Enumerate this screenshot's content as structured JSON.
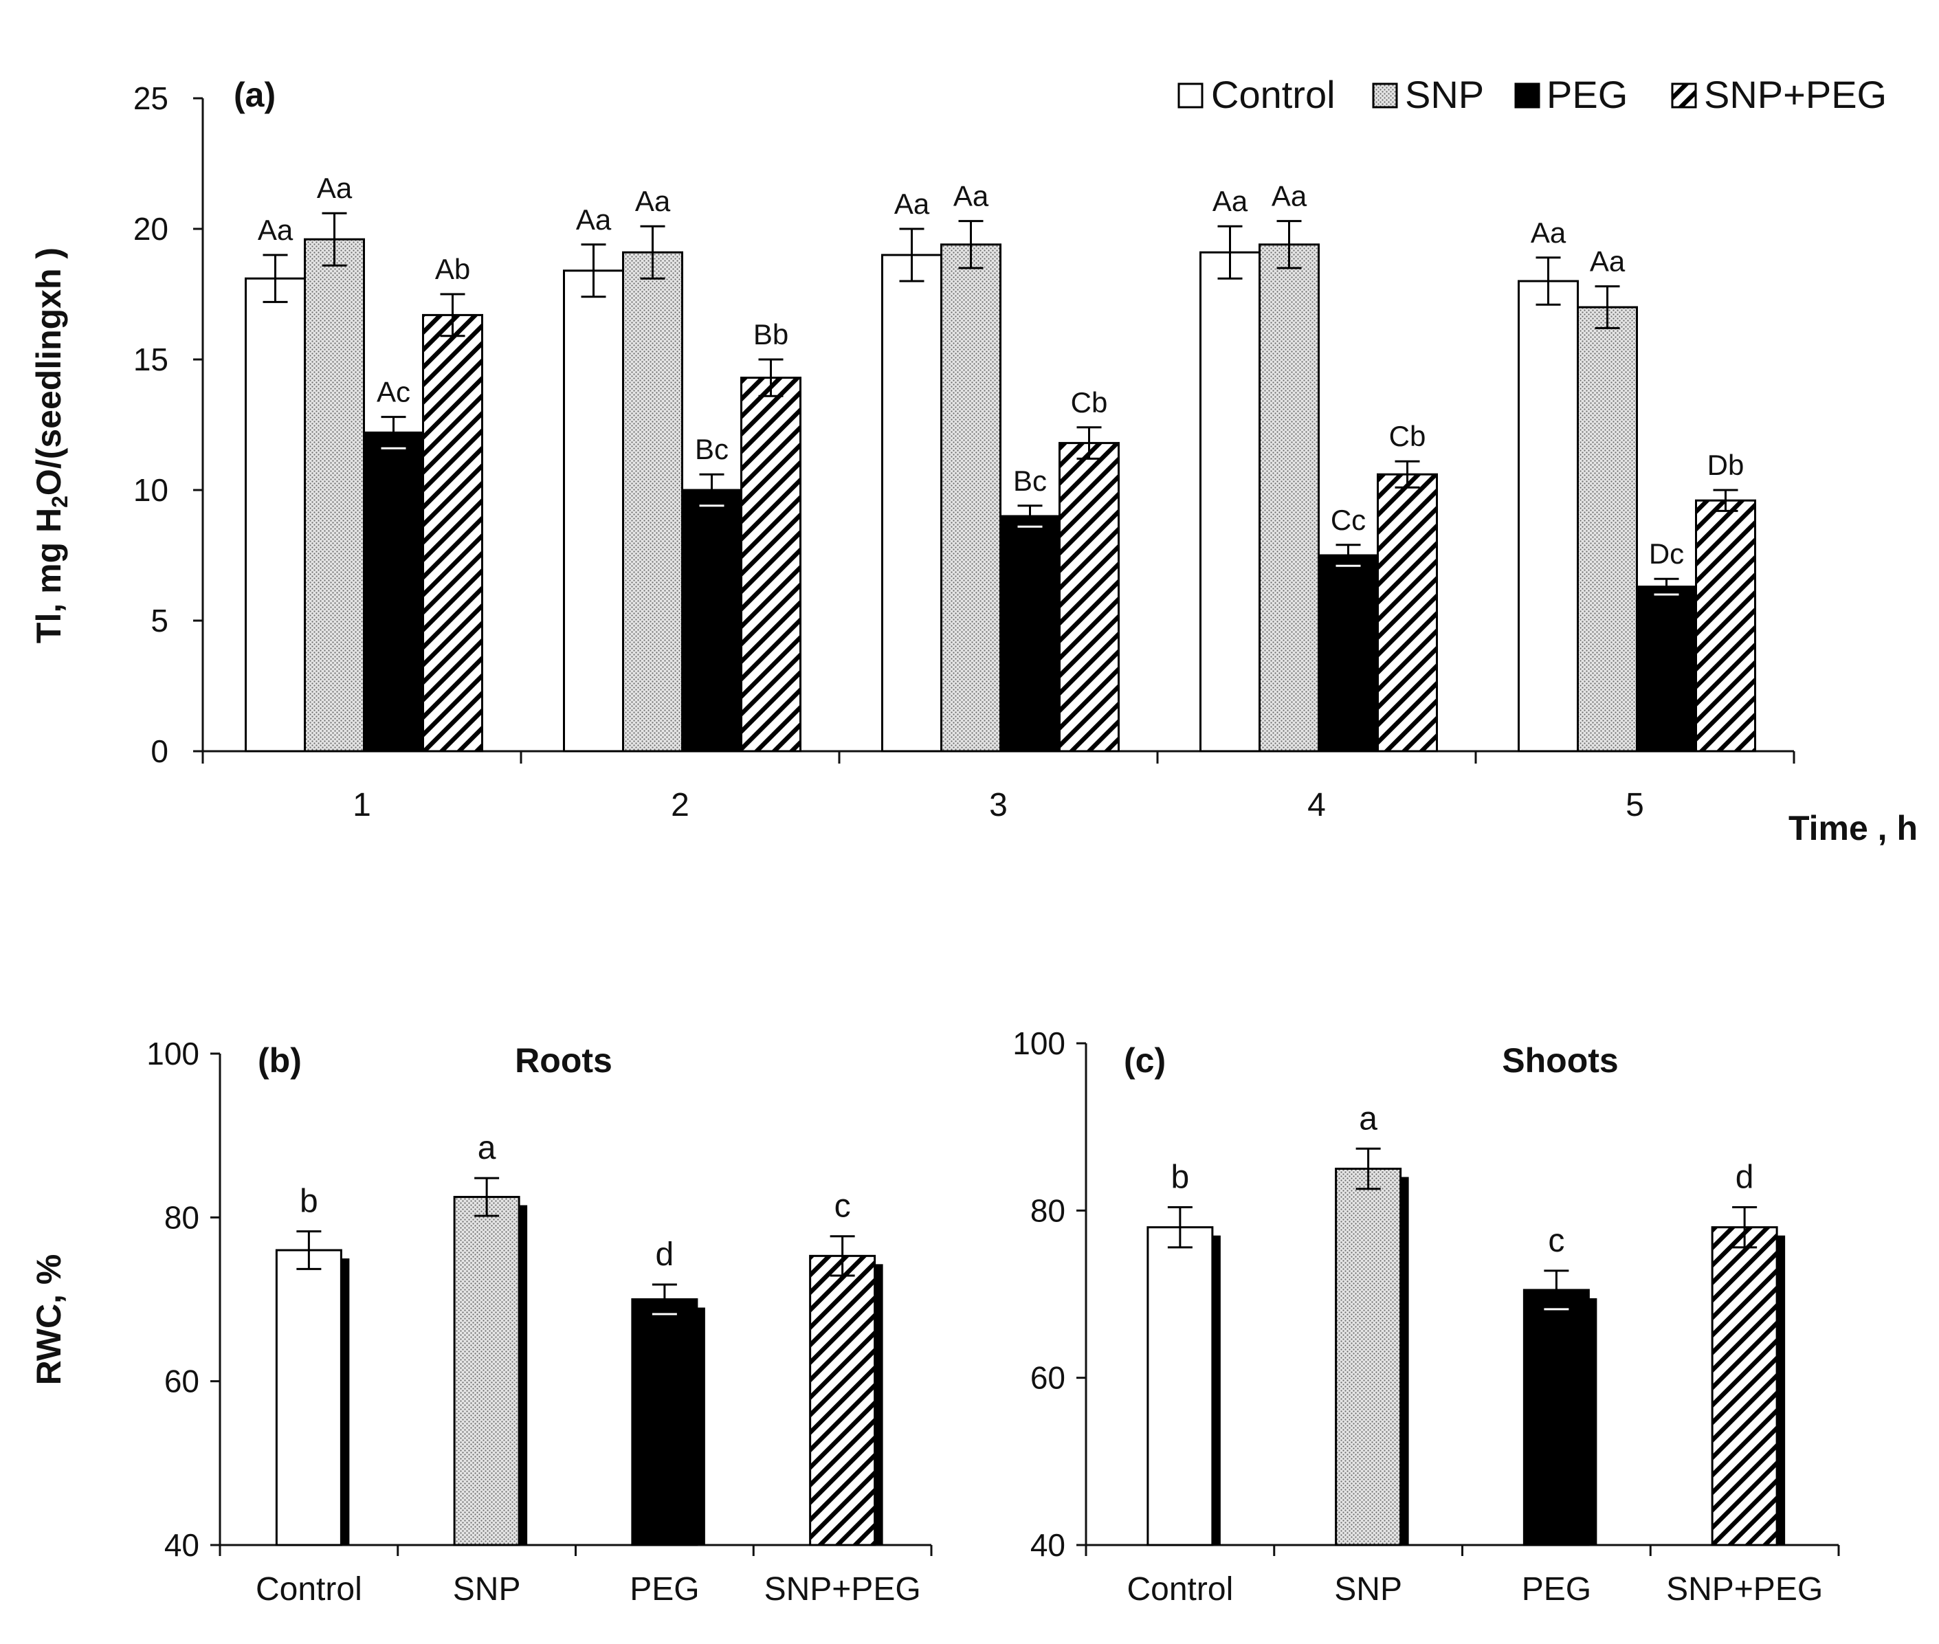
{
  "colors": {
    "control": "#ffffff",
    "snp": "#d9d9d9",
    "peg": "#000000",
    "snp_peg": "#ffffff",
    "axis": "#111111"
  },
  "chart_data": [
    {
      "id": "a",
      "type": "bar",
      "panel_label": "(a)",
      "title": "",
      "ylabel": "Tl, mg H2O/(seedlingxh )",
      "ylabel_parts": [
        "Tl, mg H",
        "2",
        "O/(seedlingxh )"
      ],
      "xlabel": "Time , h",
      "categories": [
        "1",
        "2",
        "3",
        "4",
        "5"
      ],
      "ylim": [
        0,
        25
      ],
      "yticks": [
        "0",
        "5",
        "10",
        "15",
        "20",
        "25"
      ],
      "legend": [
        "Control",
        "SNP",
        "PEG",
        "SNP+PEG"
      ],
      "series": [
        {
          "name": "Control",
          "values": [
            18.1,
            18.4,
            19.0,
            19.1,
            18.0
          ],
          "errors": [
            0.9,
            1.0,
            1.0,
            1.0,
            0.9
          ],
          "labels": [
            "Aa",
            "Aa",
            "Aa",
            "Aa",
            "Aa"
          ]
        },
        {
          "name": "SNP",
          "values": [
            19.6,
            19.1,
            19.4,
            19.4,
            17.0
          ],
          "errors": [
            1.0,
            1.0,
            0.9,
            0.9,
            0.8
          ],
          "labels": [
            "Aa",
            "Aa",
            "Aa",
            "Aa",
            "Aa"
          ]
        },
        {
          "name": "PEG",
          "values": [
            12.2,
            10.0,
            9.0,
            7.5,
            6.3
          ],
          "errors": [
            0.6,
            0.6,
            0.4,
            0.4,
            0.3
          ],
          "labels": [
            "Ac",
            "Bc",
            "Bc",
            "Cc",
            "Dc"
          ]
        },
        {
          "name": "SNP+PEG",
          "values": [
            16.7,
            14.3,
            11.8,
            10.6,
            9.6
          ],
          "errors": [
            0.8,
            0.7,
            0.6,
            0.5,
            0.4
          ],
          "labels": [
            "Ab",
            "Bb",
            "Cb",
            "Cb",
            "Db"
          ]
        }
      ]
    },
    {
      "id": "b",
      "type": "bar",
      "panel_label": "(b)",
      "title": "Roots",
      "ylabel": "RWC, %",
      "categories": [
        "Control",
        "SNP",
        "PEG",
        "SNP+PEG"
      ],
      "ylim": [
        40,
        100
      ],
      "yticks": [
        "40",
        "60",
        "80",
        "100"
      ],
      "values": [
        76.0,
        82.5,
        70.0,
        75.3
      ],
      "errors": [
        2.3,
        2.3,
        1.8,
        2.4
      ],
      "labels": [
        "b",
        "a",
        "d",
        "c"
      ]
    },
    {
      "id": "c",
      "type": "bar",
      "panel_label": "(c)",
      "title": "Shoots",
      "ylabel": "",
      "categories": [
        "Control",
        "SNP",
        "PEG",
        "SNP+PEG"
      ],
      "ylim": [
        40,
        100
      ],
      "yticks": [
        "40",
        "60",
        "80",
        "100"
      ],
      "values": [
        78.0,
        85.0,
        70.5,
        78.0
      ],
      "errors": [
        2.4,
        2.4,
        2.3,
        2.4
      ],
      "labels": [
        "b",
        "a",
        "c",
        "d"
      ]
    }
  ]
}
